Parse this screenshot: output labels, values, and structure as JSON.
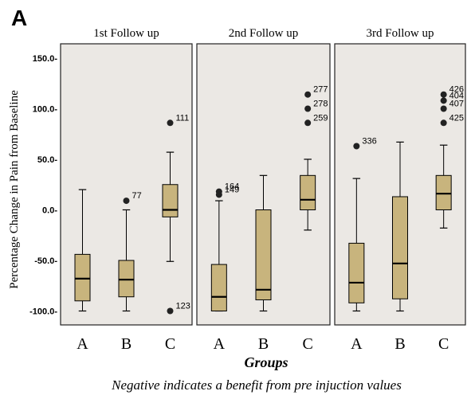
{
  "panel_letter": "A",
  "caption": "Negative indicates a benefit from pre injuction values",
  "chart_data": {
    "type": "boxplot",
    "ylabel": "Percentage Change in Pain from Baseline",
    "xlabel": "Groups",
    "ylim": [
      -108,
      160
    ],
    "yticks": [
      -100,
      -50,
      0,
      50,
      100,
      150
    ],
    "ytick_labels": [
      "-100.0-",
      "-50.0-",
      "0.0-",
      "50.0-",
      "100.0-",
      "150.0-"
    ],
    "categories": [
      "A",
      "B",
      "C"
    ],
    "box_fill": "#c8b47d",
    "panel_bg": "#ebe8e4",
    "panels": [
      {
        "title": "1st Follow up",
        "boxes": [
          {
            "group": "A",
            "whisker_low": -100,
            "q1": -90,
            "median": -68,
            "q3": -44,
            "whisker_high": 20,
            "outliers": []
          },
          {
            "group": "B",
            "whisker_low": -100,
            "q1": -86,
            "median": -69,
            "q3": -50,
            "whisker_high": 0,
            "outliers": [
              {
                "value": 9,
                "label": "77"
              }
            ]
          },
          {
            "group": "C",
            "whisker_low": -51,
            "q1": -7,
            "median": 0,
            "q3": 25,
            "whisker_high": 57,
            "outliers": [
              {
                "value": 86,
                "label": "111"
              },
              {
                "value": -100,
                "label": "123"
              }
            ]
          }
        ]
      },
      {
        "title": "2nd Follow up",
        "boxes": [
          {
            "group": "A",
            "whisker_low": -100,
            "q1": -100,
            "median": -86,
            "q3": -54,
            "whisker_high": 9,
            "outliers": [
              {
                "value": 18,
                "label": "164"
              },
              {
                "value": 15,
                "label": "149"
              }
            ]
          },
          {
            "group": "B",
            "whisker_low": -100,
            "q1": -89,
            "median": -79,
            "q3": 0,
            "whisker_high": 34,
            "outliers": []
          },
          {
            "group": "C",
            "whisker_low": -20,
            "q1": 0,
            "median": 10,
            "q3": 34,
            "whisker_high": 50,
            "outliers": [
              {
                "value": 114,
                "label": "277"
              },
              {
                "value": 100,
                "label": "278"
              },
              {
                "value": 86,
                "label": "259"
              }
            ]
          }
        ]
      },
      {
        "title": "3rd Follow up",
        "boxes": [
          {
            "group": "A",
            "whisker_low": -100,
            "q1": -92,
            "median": -72,
            "q3": -33,
            "whisker_high": 31,
            "outliers": [
              {
                "value": 63,
                "label": "336"
              }
            ]
          },
          {
            "group": "B",
            "whisker_low": -100,
            "q1": -88,
            "median": -53,
            "q3": 13,
            "whisker_high": 67,
            "outliers": []
          },
          {
            "group": "C",
            "whisker_low": -18,
            "q1": 0,
            "median": 16,
            "q3": 34,
            "whisker_high": 64,
            "outliers": [
              {
                "value": 114,
                "label": "426"
              },
              {
                "value": 108,
                "label": "404"
              },
              {
                "value": 100,
                "label": "407"
              },
              {
                "value": 86,
                "label": "425"
              }
            ]
          }
        ]
      }
    ]
  }
}
